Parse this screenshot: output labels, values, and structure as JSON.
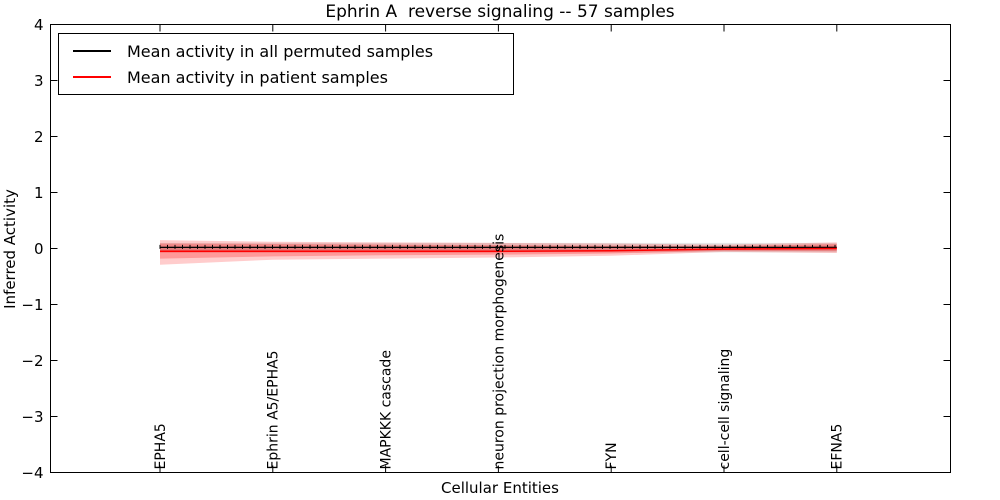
{
  "chart_data": {
    "type": "line",
    "title": "Ephrin A  reverse signaling -- 57 samples",
    "xlabel": "Cellular Entities",
    "ylabel": "Inferred Activity",
    "ylim": [
      -4,
      4
    ],
    "y_tick_values": [
      4,
      3,
      2,
      1,
      0,
      -1,
      -2,
      -3,
      -4
    ],
    "y_tick_labels": [
      "4",
      "3",
      "2",
      "1",
      "0",
      "−1",
      "−2",
      "−3",
      "−4"
    ],
    "categories": [
      "EPHA5",
      "Ephrin A5/EPHA5",
      "MAPKKK cascade",
      "neuron projection morphogenesis",
      "FYN",
      "cell-cell signaling",
      "EFNA5"
    ],
    "legend_position": "upper left",
    "grid": false,
    "series": [
      {
        "name": "Mean activity in all permuted samples",
        "color": "#000000",
        "line_width": 1.2,
        "marker": "tick",
        "values": [
          0.02,
          0.02,
          0.02,
          0.02,
          0.02,
          0.02,
          0.02
        ]
      },
      {
        "name": "Mean activity in patient samples",
        "color": "#ff0000",
        "line_width": 1.6,
        "marker": "none",
        "values": [
          -0.05,
          -0.05,
          -0.05,
          -0.05,
          -0.04,
          -0.01,
          0.0
        ]
      }
    ],
    "bands": [
      {
        "name": "permuted-samples-spread-outer",
        "color": "#000000",
        "opacity": 0.1,
        "upper": [
          0.1,
          0.1,
          0.1,
          0.1,
          0.1,
          0.1,
          0.1
        ],
        "lower": [
          -0.07,
          -0.07,
          -0.07,
          -0.07,
          -0.07,
          -0.07,
          -0.07
        ]
      },
      {
        "name": "permuted-samples-spread-inner",
        "color": "#000000",
        "opacity": 0.1,
        "upper": [
          0.05,
          0.05,
          0.05,
          0.05,
          0.05,
          0.05,
          0.05
        ],
        "lower": [
          -0.035,
          -0.035,
          -0.035,
          -0.035,
          -0.035,
          -0.035,
          -0.035
        ]
      },
      {
        "name": "patient-samples-spread-outer",
        "color": "#ff0000",
        "opacity": 0.2,
        "upper": [
          0.15,
          0.12,
          0.11,
          0.1,
          0.09,
          0.07,
          0.11
        ],
        "lower": [
          -0.29,
          -0.2,
          -0.18,
          -0.16,
          -0.13,
          -0.06,
          -0.08
        ]
      },
      {
        "name": "patient-samples-spread-inner",
        "color": "#ff0000",
        "opacity": 0.25,
        "upper": [
          0.09,
          0.08,
          0.07,
          0.06,
          0.05,
          0.04,
          0.08
        ],
        "lower": [
          -0.18,
          -0.14,
          -0.12,
          -0.11,
          -0.09,
          -0.04,
          -0.05
        ]
      }
    ]
  }
}
